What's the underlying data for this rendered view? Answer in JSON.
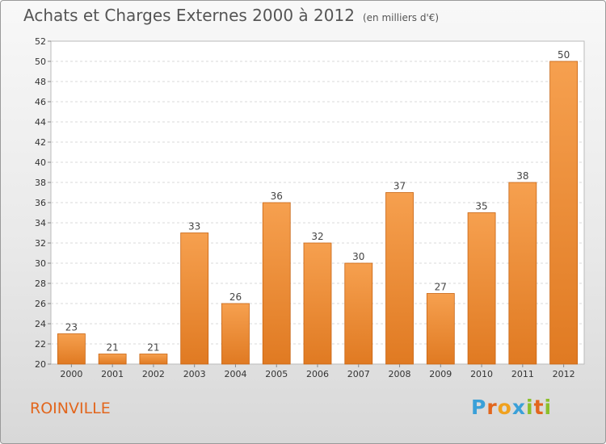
{
  "header": {
    "title": "Achats et Charges Externes 2000 à 2012",
    "unit": "(en milliers d'€)"
  },
  "footer": {
    "city": "ROINVILLE",
    "logo_letters": [
      "P",
      "r",
      "o",
      "x",
      "i",
      "t",
      "i"
    ],
    "logo_colors": [
      "#3aa0d8",
      "#e2661d",
      "#f0a11e",
      "#3aa0d8",
      "#8bbf2a",
      "#e2661d",
      "#8bbf2a"
    ]
  },
  "chart_data": {
    "type": "bar",
    "title": "Achats et Charges Externes 2000 à 2012",
    "subtitle": "(en milliers d'€)",
    "categories": [
      "2000",
      "2001",
      "2002",
      "2003",
      "2004",
      "2005",
      "2006",
      "2007",
      "2008",
      "2009",
      "2010",
      "2011",
      "2012"
    ],
    "values": [
      23,
      21,
      21,
      33,
      26,
      36,
      32,
      30,
      37,
      27,
      35,
      38,
      50
    ],
    "ylim": [
      20,
      52
    ],
    "ytick_step": 2,
    "grid": true,
    "bar_color_light": "#f6a04f",
    "bar_color_dark": "#e07a22",
    "bar_edge_color": "#c86412"
  }
}
